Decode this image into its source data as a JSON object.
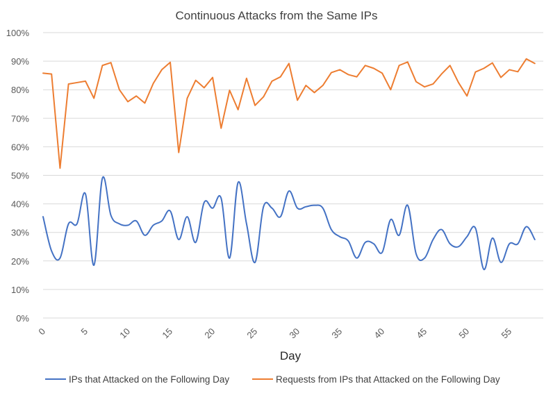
{
  "chart_data": {
    "type": "line",
    "title": "Continuous Attacks from the Same IPs",
    "xlabel": "Day",
    "ylabel": "",
    "xlim": [
      0,
      59
    ],
    "ylim": [
      0,
      100
    ],
    "y_tick_values": [
      0,
      10,
      20,
      30,
      40,
      50,
      60,
      70,
      80,
      90,
      100
    ],
    "y_tick_labels": [
      "0%",
      "10%",
      "20%",
      "30%",
      "40%",
      "50%",
      "60%",
      "70%",
      "80%",
      "90%",
      "100%"
    ],
    "x_tick_values": [
      0,
      5,
      10,
      15,
      20,
      25,
      30,
      35,
      40,
      45,
      50,
      55
    ],
    "x_tick_labels": [
      "0",
      "5",
      "10",
      "15",
      "20",
      "25",
      "30",
      "35",
      "40",
      "45",
      "50",
      "55"
    ],
    "grid": "horizontal",
    "legend_position": "bottom",
    "x": [
      0,
      1,
      2,
      3,
      4,
      5,
      6,
      7,
      8,
      9,
      10,
      11,
      12,
      13,
      14,
      15,
      16,
      17,
      18,
      19,
      20,
      21,
      22,
      23,
      24,
      25,
      26,
      27,
      28,
      29,
      30,
      31,
      32,
      33,
      34,
      35,
      36,
      37,
      38,
      39,
      40,
      41,
      42,
      43,
      44,
      45,
      46,
      47,
      48,
      49,
      50,
      51,
      52,
      53,
      54,
      55,
      56,
      57,
      58
    ],
    "series": [
      {
        "name": "IPs that Attacked on the Following Day",
        "color": "#4472c4",
        "smooth": true,
        "values": [
          35.5,
          23.5,
          21,
          33,
          33,
          43.5,
          18.5,
          49,
          36,
          33,
          32.5,
          34,
          29,
          32.5,
          34,
          37.5,
          27.5,
          35.5,
          26.5,
          40.5,
          38.5,
          42,
          21,
          47.5,
          33,
          19.5,
          39,
          38.5,
          35.5,
          44.5,
          38.5,
          39,
          39.5,
          38.5,
          31,
          28.5,
          27,
          21,
          26.5,
          26,
          23,
          34.5,
          29,
          39.5,
          22.5,
          21,
          27.5,
          31,
          26,
          25,
          28.5,
          31.5,
          17,
          28,
          19.5,
          26,
          26,
          32,
          27.5
        ]
      },
      {
        "name": "Requests from IPs that Attacked on the Following Day",
        "color": "#ed7d31",
        "smooth": false,
        "values": [
          85.8,
          85.5,
          52.5,
          82,
          82.5,
          83,
          77,
          88.5,
          89.5,
          80,
          75.8,
          77.8,
          75.3,
          82.2,
          87,
          89.6,
          58,
          77,
          83.3,
          80.7,
          84.3,
          66.5,
          79.8,
          73,
          84,
          74.5,
          77.5,
          83,
          84.5,
          89.2,
          76.3,
          81.5,
          79,
          81.5,
          86,
          87,
          85.3,
          84.5,
          88.5,
          87.5,
          85.8,
          80,
          88.5,
          89.7,
          82.8,
          81,
          82,
          85.5,
          88.5,
          82.5,
          77.8,
          86.2,
          87.5,
          89.4,
          84.3,
          87,
          86.3,
          90.8,
          89.2
        ]
      }
    ]
  }
}
